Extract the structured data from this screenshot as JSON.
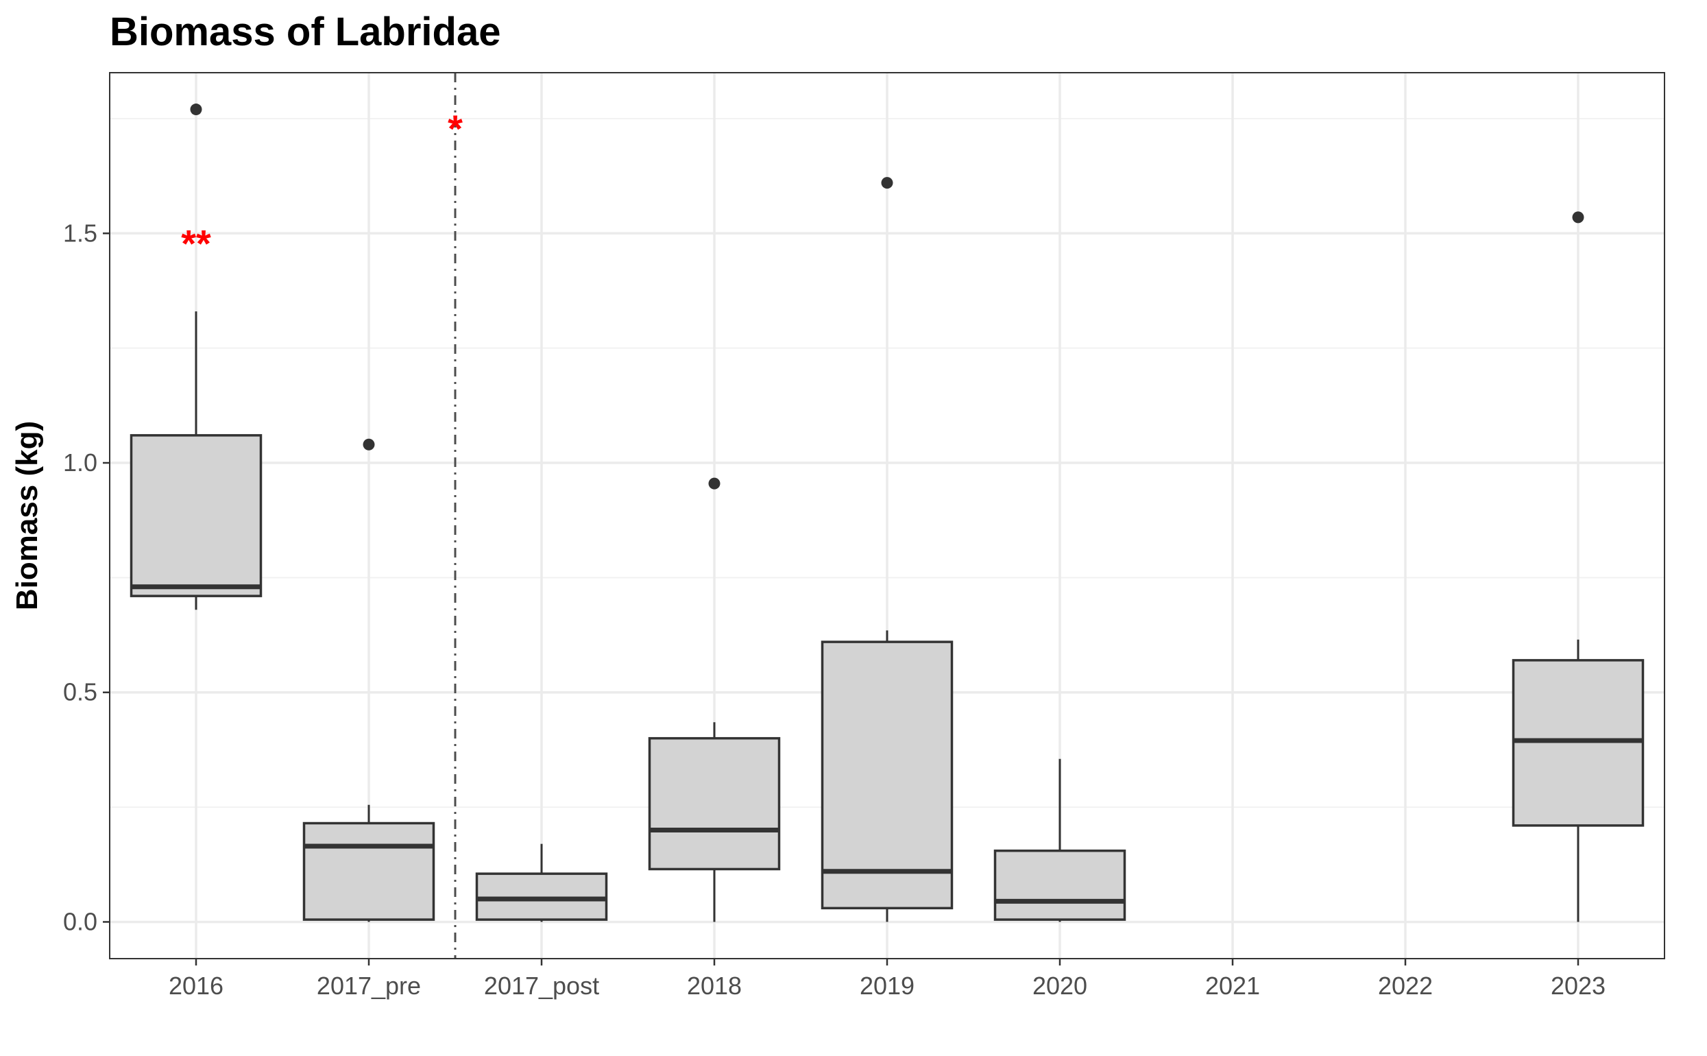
{
  "chart_data": {
    "type": "boxplot",
    "title": "Biomass of Labridae",
    "xlabel": "",
    "ylabel": "Biomass (kg)",
    "categories": [
      "2016",
      "2017_pre",
      "2017_post",
      "2018",
      "2019",
      "2020",
      "2021",
      "2022",
      "2023"
    ],
    "ylim": [
      -0.08,
      1.85
    ],
    "yticks": [
      0.0,
      0.5,
      1.0,
      1.5
    ],
    "ytick_labels": [
      "0.0",
      "0.5",
      "1.0",
      "1.5"
    ],
    "grid": true,
    "box_fill": "#d3d3d3",
    "line_color": "#333333",
    "annotation_color": "#ff0000",
    "boxes": [
      {
        "category": "2016",
        "whisker_low": 0.68,
        "q1": 0.71,
        "median": 0.73,
        "q3": 1.06,
        "whisker_high": 1.33,
        "outliers": [
          1.77
        ]
      },
      {
        "category": "2017_pre",
        "whisker_low": 0.0,
        "q1": 0.005,
        "median": 0.165,
        "q3": 0.215,
        "whisker_high": 0.255,
        "outliers": [
          1.04
        ]
      },
      {
        "category": "2017_post",
        "whisker_low": 0.0,
        "q1": 0.005,
        "median": 0.05,
        "q3": 0.105,
        "whisker_high": 0.17,
        "outliers": []
      },
      {
        "category": "2018",
        "whisker_low": 0.0,
        "q1": 0.115,
        "median": 0.2,
        "q3": 0.4,
        "whisker_high": 0.435,
        "outliers": [
          0.955
        ]
      },
      {
        "category": "2019",
        "whisker_low": 0.0,
        "q1": 0.03,
        "median": 0.11,
        "q3": 0.61,
        "whisker_high": 0.635,
        "outliers": [
          1.61
        ]
      },
      {
        "category": "2020",
        "whisker_low": 0.0,
        "q1": 0.005,
        "median": 0.045,
        "q3": 0.155,
        "whisker_high": 0.355,
        "outliers": []
      },
      {
        "category": "2023",
        "whisker_low": 0.0,
        "q1": 0.21,
        "median": 0.395,
        "q3": 0.57,
        "whisker_high": 0.615,
        "outliers": [
          1.535
        ]
      }
    ],
    "vertical_reference_line": {
      "between": [
        "2017_pre",
        "2017_post"
      ],
      "style": "dash-dot"
    },
    "annotations": [
      {
        "text": "**",
        "category": "2016",
        "y": 1.5
      },
      {
        "text": "*",
        "between": [
          "2017_pre",
          "2017_post"
        ],
        "y": 1.75
      }
    ]
  }
}
